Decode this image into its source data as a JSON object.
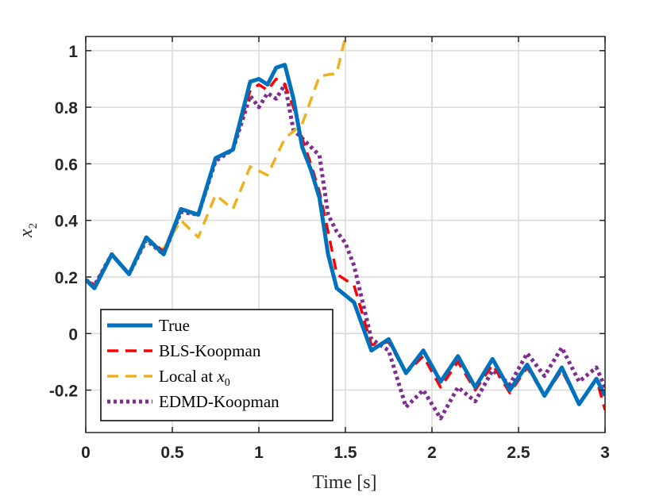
{
  "chart_data": {
    "type": "line",
    "xlabel": "Time [s]",
    "ylabel_base": "x",
    "ylabel_sub": "2",
    "xlim": [
      0,
      3
    ],
    "ylim": [
      -0.35,
      1.05
    ],
    "grid": true,
    "legend_position": "bottom-left",
    "xticks": [
      0,
      0.5,
      1,
      1.5,
      2,
      2.5,
      3
    ],
    "xtick_labels": [
      "0",
      "0.5",
      "1",
      "1.5",
      "2",
      "2.5",
      "3"
    ],
    "yticks": [
      -0.2,
      0,
      0.2,
      0.4,
      0.6,
      0.8,
      1
    ],
    "ytick_labels": [
      "-0.2",
      "0",
      "0.2",
      "0.4",
      "0.6",
      "0.8",
      "1"
    ],
    "series": [
      {
        "name": "True",
        "color": "#0072BD",
        "dash": "solid",
        "x": [
          0,
          0.05,
          0.15,
          0.25,
          0.35,
          0.45,
          0.55,
          0.65,
          0.75,
          0.85,
          0.95,
          1.0,
          1.05,
          1.1,
          1.15,
          1.2,
          1.25,
          1.3,
          1.35,
          1.4,
          1.45,
          1.55,
          1.65,
          1.75,
          1.85,
          1.95,
          2.05,
          2.15,
          2.25,
          2.35,
          2.45,
          2.55,
          2.65,
          2.75,
          2.85,
          2.95,
          3.0
        ],
        "y": [
          0.19,
          0.16,
          0.28,
          0.21,
          0.34,
          0.28,
          0.44,
          0.42,
          0.62,
          0.65,
          0.89,
          0.9,
          0.88,
          0.94,
          0.95,
          0.83,
          0.66,
          0.58,
          0.48,
          0.28,
          0.16,
          0.11,
          -0.06,
          -0.02,
          -0.14,
          -0.06,
          -0.17,
          -0.08,
          -0.19,
          -0.09,
          -0.2,
          -0.11,
          -0.22,
          -0.12,
          -0.25,
          -0.16,
          -0.22
        ]
      },
      {
        "name": "BLS-Koopman",
        "color": "#FF0000",
        "dash": "dashed",
        "x": [
          0,
          0.05,
          0.15,
          0.25,
          0.35,
          0.45,
          0.55,
          0.65,
          0.75,
          0.85,
          0.95,
          1.0,
          1.05,
          1.1,
          1.15,
          1.2,
          1.25,
          1.3,
          1.35,
          1.4,
          1.45,
          1.55,
          1.65,
          1.75,
          1.85,
          1.95,
          2.05,
          2.15,
          2.25,
          2.35,
          2.45,
          2.55,
          2.65,
          2.75,
          2.85,
          2.95,
          3.0
        ],
        "y": [
          0.19,
          0.17,
          0.28,
          0.21,
          0.34,
          0.29,
          0.44,
          0.42,
          0.62,
          0.65,
          0.86,
          0.88,
          0.86,
          0.9,
          0.88,
          0.8,
          0.69,
          0.6,
          0.5,
          0.36,
          0.21,
          0.17,
          -0.04,
          -0.03,
          -0.14,
          -0.08,
          -0.19,
          -0.1,
          -0.2,
          -0.11,
          -0.21,
          -0.12,
          -0.22,
          -0.13,
          -0.25,
          -0.16,
          -0.27
        ]
      },
      {
        "name": "Local at x_0",
        "legend_base": "Local at x",
        "legend_sub": "0",
        "color": "#EDB120",
        "dash": "dashed",
        "x": [
          0,
          0.05,
          0.15,
          0.25,
          0.35,
          0.45,
          0.55,
          0.65,
          0.75,
          0.85,
          0.95,
          1.05,
          1.15,
          1.25,
          1.35,
          1.45,
          1.5
        ],
        "y": [
          0.19,
          0.17,
          0.28,
          0.21,
          0.33,
          0.3,
          0.4,
          0.34,
          0.49,
          0.44,
          0.59,
          0.56,
          0.69,
          0.74,
          0.91,
          0.92,
          1.05
        ]
      },
      {
        "name": "EDMD-Koopman",
        "color": "#7E2F8E",
        "dash": "dotted",
        "x": [
          0,
          0.05,
          0.15,
          0.25,
          0.35,
          0.45,
          0.55,
          0.65,
          0.75,
          0.85,
          0.95,
          1.0,
          1.05,
          1.1,
          1.15,
          1.2,
          1.25,
          1.3,
          1.35,
          1.4,
          1.45,
          1.5,
          1.55,
          1.65,
          1.75,
          1.85,
          1.95,
          2.05,
          2.15,
          2.25,
          2.35,
          2.45,
          2.55,
          2.65,
          2.75,
          2.85,
          2.95,
          3.0
        ],
        "y": [
          0.19,
          0.17,
          0.28,
          0.21,
          0.33,
          0.28,
          0.43,
          0.42,
          0.61,
          0.65,
          0.84,
          0.8,
          0.85,
          0.83,
          0.88,
          0.72,
          0.69,
          0.66,
          0.63,
          0.42,
          0.36,
          0.32,
          0.24,
          -0.02,
          -0.06,
          -0.26,
          -0.2,
          -0.3,
          -0.19,
          -0.24,
          -0.13,
          -0.18,
          -0.07,
          -0.15,
          -0.05,
          -0.17,
          -0.12,
          -0.19
        ]
      }
    ]
  }
}
